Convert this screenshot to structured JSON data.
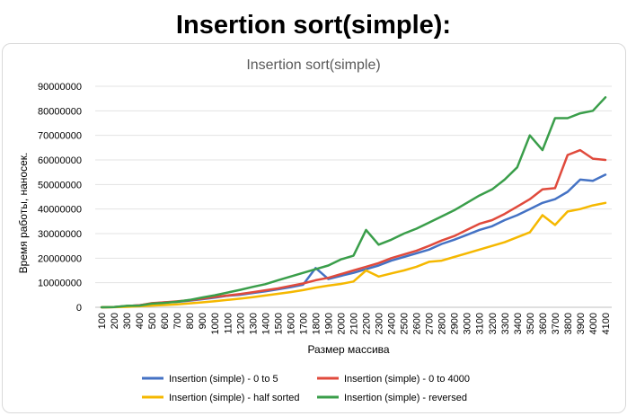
{
  "heading": "Insertion sort(simple):",
  "chart_data": {
    "type": "line",
    "title": "Insertion sort(simple)",
    "xlabel": "Размер массива",
    "ylabel": "Время работы, наносек.",
    "ylim": [
      0,
      90000000
    ],
    "yticks": [
      "0",
      "10000000",
      "20000000",
      "30000000",
      "40000000",
      "50000000",
      "60000000",
      "70000000",
      "80000000",
      "90000000"
    ],
    "grid": true,
    "legend_position": "bottom",
    "categories": [
      "100",
      "200",
      "300",
      "400",
      "500",
      "600",
      "700",
      "800",
      "900",
      "1000",
      "1100",
      "1200",
      "1300",
      "1400",
      "1500",
      "1600",
      "1700",
      "1800",
      "1900",
      "2000",
      "2100",
      "2200",
      "2300",
      "2400",
      "2500",
      "2600",
      "2700",
      "2800",
      "2900",
      "3000",
      "3100",
      "3200",
      "3300",
      "3400",
      "3500",
      "3600",
      "3700",
      "3800",
      "3900",
      "4000",
      "4100"
    ],
    "series": [
      {
        "name": "Insertion (simple) - 0 to 5",
        "color": "#4472c4",
        "values": [
          0,
          100000,
          500000,
          800000,
          1500000,
          2000000,
          2200000,
          2700000,
          3300000,
          3900000,
          4700000,
          5100000,
          5800000,
          6500000,
          7300000,
          8200000,
          9200000,
          16000000,
          11500000,
          12800000,
          14000000,
          15500000,
          17000000,
          19000000,
          20500000,
          22000000,
          23500000,
          25800000,
          27500000,
          29500000,
          31500000,
          33000000,
          35500000,
          37500000,
          40000000,
          42500000,
          44000000,
          47000000,
          52000000,
          51500000,
          54000000
        ]
      },
      {
        "name": "Insertion (simple) - 0 to 4000",
        "color": "#e04a3c",
        "values": [
          0,
          100000,
          500000,
          800000,
          1700000,
          2000000,
          2400000,
          2900000,
          3500000,
          4200000,
          4800000,
          5400000,
          6100000,
          6900000,
          7700000,
          8700000,
          9700000,
          11000000,
          12000000,
          13500000,
          15000000,
          16500000,
          18000000,
          20000000,
          21500000,
          23000000,
          25000000,
          27200000,
          29000000,
          31500000,
          34000000,
          35500000,
          38000000,
          41000000,
          44000000,
          48000000,
          48500000,
          62000000,
          64000000,
          60500000,
          60000000
        ]
      },
      {
        "name": "Insertion (simple) - half sorted",
        "color": "#f5b800",
        "values": [
          0,
          50000,
          200000,
          400000,
          700000,
          900000,
          1200000,
          1600000,
          2000000,
          2500000,
          3000000,
          3500000,
          4100000,
          4800000,
          5500000,
          6200000,
          7000000,
          8000000,
          8800000,
          9500000,
          10500000,
          15000000,
          12500000,
          13800000,
          15000000,
          16500000,
          18500000,
          19000000,
          20500000,
          22000000,
          23500000,
          25000000,
          26500000,
          28500000,
          30500000,
          37500000,
          33500000,
          39000000,
          40000000,
          41500000,
          42500000
        ]
      },
      {
        "name": "Insertion (simple) - reversed",
        "color": "#3a9e4a",
        "values": [
          0,
          100000,
          600000,
          700000,
          1500000,
          1800000,
          2300000,
          3000000,
          4000000,
          4900000,
          6000000,
          7100000,
          8300000,
          9400000,
          11000000,
          12500000,
          14000000,
          15500000,
          17000000,
          19500000,
          21000000,
          31500000,
          25500000,
          27500000,
          30000000,
          32000000,
          34500000,
          37000000,
          39500000,
          42500000,
          45500000,
          48000000,
          52000000,
          57000000,
          70000000,
          64000000,
          77000000,
          77000000,
          79000000,
          80000000,
          85500000
        ]
      }
    ]
  }
}
